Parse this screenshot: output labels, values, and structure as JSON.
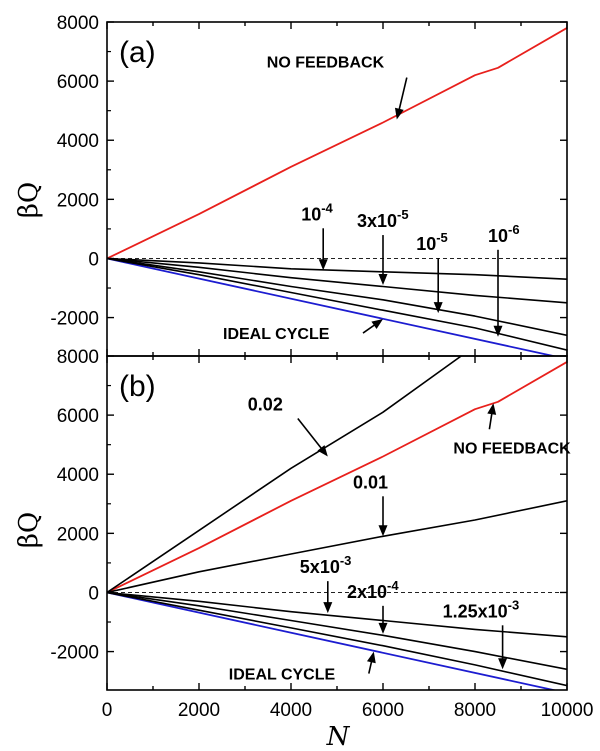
{
  "chart_data": [
    {
      "type": "line",
      "panel_label": "(a)",
      "xlabel": "N",
      "ylabel": "βQ",
      "xlim": [
        0,
        10000
      ],
      "ylim": [
        -3300,
        8000
      ],
      "yticks": [
        8000,
        6000,
        4000,
        2000,
        0,
        -2000
      ],
      "zero_line": "dashed",
      "series": [
        {
          "name": "NO FEEDBACK",
          "color": "#e8201c",
          "x": [
            0,
            2000,
            4000,
            6000,
            8000,
            8500,
            10000
          ],
          "y": [
            0,
            1500,
            3100,
            4600,
            6200,
            6450,
            7800
          ]
        },
        {
          "name": "IDEAL CYCLE",
          "color": "#1c1cd0",
          "x": [
            0,
            10000
          ],
          "y": [
            0,
            -3400
          ]
        },
        {
          "name": "10-4",
          "color": "#000000",
          "x": [
            0,
            2000,
            4000,
            6000,
            8000,
            10000
          ],
          "y": [
            0,
            -150,
            -350,
            -450,
            -550,
            -700
          ]
        },
        {
          "name": "3x10-5",
          "color": "#000000",
          "x": [
            0,
            2000,
            4000,
            6000,
            8000,
            10000
          ],
          "y": [
            0,
            -300,
            -650,
            -950,
            -1250,
            -1500
          ]
        },
        {
          "name": "10-5",
          "color": "#000000",
          "x": [
            0,
            2000,
            4000,
            6000,
            8000,
            10000
          ],
          "y": [
            0,
            -450,
            -950,
            -1400,
            -1950,
            -2600
          ]
        },
        {
          "name": "10-6",
          "color": "#000000",
          "x": [
            0,
            2000,
            4000,
            6000,
            8000,
            10000
          ],
          "y": [
            0,
            -550,
            -1150,
            -1750,
            -2350,
            -3100
          ]
        }
      ],
      "annotations": [
        {
          "base": "NO FEEDBACK",
          "sup": "",
          "x": 6300,
          "y": 4700
        },
        {
          "base": "IDEAL CYCLE",
          "sup": "",
          "x": 6000,
          "y": -2050
        },
        {
          "base": "10",
          "sup": "-4",
          "x": 4700,
          "y": -400
        },
        {
          "base": "3x10",
          "sup": "-5",
          "x": 6000,
          "y": -900
        },
        {
          "base": "10",
          "sup": "-5",
          "x": 7200,
          "y": -1850
        },
        {
          "base": "10",
          "sup": "-6",
          "x": 8500,
          "y": -2650
        }
      ]
    },
    {
      "type": "line",
      "panel_label": "(b)",
      "xlabel": "N",
      "ylabel": "βQ",
      "xlim": [
        0,
        10000
      ],
      "ylim": [
        -3300,
        8000
      ],
      "xticks": [
        0,
        2000,
        4000,
        6000,
        8000,
        10000
      ],
      "yticks": [
        8000,
        6000,
        4000,
        2000,
        0,
        -2000
      ],
      "zero_line": "dashed",
      "series": [
        {
          "name": "NO FEEDBACK",
          "color": "#e8201c",
          "x": [
            0,
            2000,
            4000,
            6000,
            8000,
            8500,
            10000
          ],
          "y": [
            0,
            1500,
            3100,
            4600,
            6200,
            6450,
            7800
          ]
        },
        {
          "name": "0.02",
          "color": "#000000",
          "x": [
            0,
            2000,
            4000,
            6000,
            7700
          ],
          "y": [
            0,
            2100,
            4200,
            6100,
            8000
          ]
        },
        {
          "name": "0.01",
          "color": "#000000",
          "x": [
            0,
            2000,
            4000,
            6000,
            8000,
            10000
          ],
          "y": [
            0,
            700,
            1300,
            1900,
            2450,
            3100
          ]
        },
        {
          "name": "IDEAL CYCLE",
          "color": "#1c1cd0",
          "x": [
            0,
            10000
          ],
          "y": [
            0,
            -3400
          ]
        },
        {
          "name": "5x10-3",
          "color": "#000000",
          "x": [
            0,
            2000,
            4000,
            6000,
            8000,
            10000
          ],
          "y": [
            0,
            -300,
            -650,
            -950,
            -1250,
            -1500
          ]
        },
        {
          "name": "2x10-4",
          "color": "#000000",
          "x": [
            0,
            2000,
            4000,
            6000,
            8000,
            10000
          ],
          "y": [
            0,
            -450,
            -950,
            -1450,
            -2000,
            -2600
          ]
        },
        {
          "name": "1.25x10-3",
          "color": "#000000",
          "x": [
            0,
            2000,
            4000,
            6000,
            8000,
            10000
          ],
          "y": [
            0,
            -600,
            -1200,
            -1800,
            -2450,
            -3150
          ]
        }
      ],
      "annotations": [
        {
          "base": "0.02",
          "sup": "",
          "x": 4800,
          "y": 4600
        },
        {
          "base": "NO FEEDBACK",
          "sup": "",
          "x": 8400,
          "y": 6400
        },
        {
          "base": "0.01",
          "sup": "",
          "x": 6000,
          "y": 1900
        },
        {
          "base": "5x10",
          "sup": "-3",
          "x": 4800,
          "y": -700
        },
        {
          "base": "2x10",
          "sup": "-4",
          "x": 6000,
          "y": -1400
        },
        {
          "base": "1.25x10",
          "sup": "-3",
          "x": 8600,
          "y": -2600
        },
        {
          "base": "IDEAL CYCLE",
          "sup": "",
          "x": 5800,
          "y": -2000
        }
      ]
    }
  ]
}
